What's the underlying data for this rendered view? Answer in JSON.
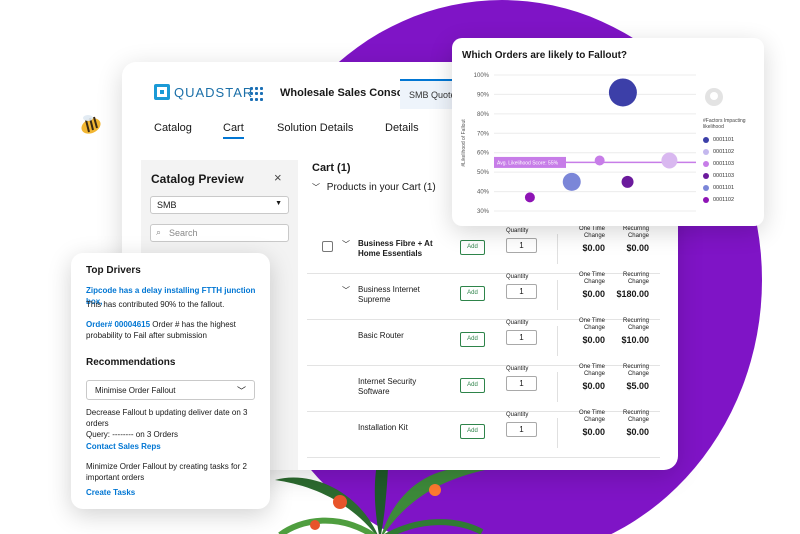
{
  "console": {
    "logo_text": "QUADSTAR",
    "title": "Wholesale Sales Console",
    "quote_tab": "SMB Quote",
    "tabs": [
      "Catalog",
      "Cart",
      "Solution Details",
      "Details"
    ],
    "active_tab": "Cart"
  },
  "catalog": {
    "title": "Catalog Preview",
    "close_glyph": "×",
    "segment_value": "SMB",
    "search_placeholder": "Search"
  },
  "cart": {
    "title": "Cart (1)",
    "subtitle": "Products in your Cart (1)",
    "add_label": "Add",
    "quantity_label": "Quantity",
    "one_time_label": "One Time Change",
    "recurring_label": "Recurring Change",
    "rows": [
      {
        "name": "Business Fibre + At Home Essentials",
        "bold": true,
        "checkbox": true,
        "expandable": true,
        "qty": "1",
        "one_time": "$0.00",
        "recurring": "$0.00"
      },
      {
        "name": "Business Internet Supreme",
        "bold": false,
        "checkbox": false,
        "expandable": true,
        "qty": "1",
        "one_time": "$0.00",
        "recurring": "$180.00"
      },
      {
        "name": "Basic Router",
        "bold": false,
        "checkbox": false,
        "expandable": false,
        "qty": "1",
        "one_time": "$0.00",
        "recurring": "$10.00"
      },
      {
        "name": "Internet Security Software",
        "bold": false,
        "checkbox": false,
        "expandable": false,
        "qty": "1",
        "one_time": "$0.00",
        "recurring": "$5.00"
      },
      {
        "name": "Installation Kit",
        "bold": false,
        "checkbox": false,
        "expandable": false,
        "qty": "1",
        "one_time": "$0.00",
        "recurring": "$0.00"
      }
    ]
  },
  "chart_data": {
    "type": "scatter",
    "title": "Which Orders are likely to Fallout?",
    "ylabel": "#Likelihood of Fallout",
    "xlabel": "",
    "ylim": [
      30,
      100
    ],
    "y_ticks": [
      "100%",
      "90%",
      "80%",
      "70%",
      "60%",
      "50%",
      "40%",
      "30%"
    ],
    "grid": true,
    "reference_line": {
      "value": 55,
      "label": "Avg. Likelihood Score: 55%",
      "color": "#c77de8"
    },
    "legend_title": "#Factors Impacting likelihood",
    "legend_position": "right",
    "legend": [
      {
        "name": "0001101",
        "color": "#3c3fa8"
      },
      {
        "name": "0001102",
        "color": "#c4b8ee"
      },
      {
        "name": "0001103",
        "color": "#c77de8"
      },
      {
        "name": "0001103",
        "color": "#6b1a9c"
      },
      {
        "name": "0001101",
        "color": "#7b86d8"
      },
      {
        "name": "0001102",
        "color": "#8e14b5"
      }
    ],
    "points": [
      {
        "x": 2.6,
        "y": 91,
        "size": 14,
        "color": "#3c3fa8"
      },
      {
        "x": 3.6,
        "y": 56,
        "size": 8,
        "color": "#d9b8f0"
      },
      {
        "x": 2.1,
        "y": 56,
        "size": 5,
        "color": "#c77de8"
      },
      {
        "x": 1.5,
        "y": 45,
        "size": 9,
        "color": "#7b86d8"
      },
      {
        "x": 2.7,
        "y": 45,
        "size": 6,
        "color": "#6b1a9c"
      },
      {
        "x": 0.6,
        "y": 37,
        "size": 5,
        "color": "#8e14b5"
      }
    ]
  },
  "drivers": {
    "top_title": "Top Drivers",
    "driver1_link": "Zipcode has a delay installing FTTH junction box,",
    "driver1_text": "This has contributed 90% to the fallout.",
    "driver2_link": "Order# 00004615",
    "driver2_text": " Order # has the highest probability to Fail after submission",
    "rec_title": "Recommendations",
    "rec_select": "Minimise Order Fallout",
    "rec1_text": "Decrease Fallout b updating deliver date on 3 orders",
    "rec1_query": "Query: -------- on 3 Orders",
    "rec1_link": "Contact Sales Reps",
    "rec2_text": "Minimize Order Fallout by creating tasks for 2 important orders",
    "rec2_link": "Create Tasks"
  }
}
